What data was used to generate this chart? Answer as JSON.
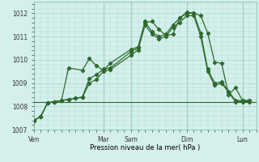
{
  "background_color": "#d5f0ec",
  "grid_color": "#b0d8d0",
  "line_color": "#2d6a2d",
  "xlabel": "Pression niveau de la mer( hPa )",
  "ylim": [
    1007,
    1012.5
  ],
  "yticks": [
    1007,
    1008,
    1009,
    1010,
    1011,
    1012
  ],
  "day_labels": [
    "Ven",
    "Mar",
    "Sam",
    "Dim",
    "Lun"
  ],
  "day_positions": [
    0,
    10,
    14,
    22,
    30
  ],
  "xmin": 0,
  "xmax": 32,
  "hline_y": 1008.2,
  "series1": {
    "x": [
      0,
      1,
      2,
      3,
      4,
      5,
      7,
      8,
      9,
      10,
      11,
      14,
      15,
      16,
      17,
      18,
      19,
      20,
      21,
      22,
      23,
      24,
      25,
      26,
      27,
      28,
      29,
      30,
      31
    ],
    "y": [
      1007.4,
      1007.55,
      1008.15,
      1008.2,
      1008.25,
      1009.65,
      1009.55,
      1010.05,
      1009.75,
      1009.55,
      1009.85,
      1010.45,
      1010.55,
      1011.6,
      1011.65,
      1011.3,
      1011.05,
      1011.1,
      1011.8,
      1012.05,
      1012.0,
      1011.9,
      1011.15,
      1009.9,
      1009.85,
      1008.5,
      1008.8,
      1008.25,
      1008.25
    ]
  },
  "series2": {
    "x": [
      0,
      1,
      2,
      3,
      4,
      5,
      6,
      7,
      8,
      9,
      10,
      11,
      14,
      15,
      16,
      17,
      18,
      19,
      20,
      21,
      22,
      23,
      24,
      25,
      26,
      27,
      28,
      29,
      30,
      31
    ],
    "y": [
      1007.4,
      1007.55,
      1008.15,
      1008.2,
      1008.25,
      1008.3,
      1008.35,
      1008.4,
      1009.2,
      1009.35,
      1009.6,
      1009.65,
      1010.35,
      1010.5,
      1011.65,
      1011.2,
      1011.0,
      1011.1,
      1011.5,
      1011.8,
      1012.0,
      1012.0,
      1011.15,
      1009.6,
      1009.0,
      1009.05,
      1008.65,
      1008.25,
      1008.25,
      1008.25
    ]
  },
  "series3": {
    "x": [
      0,
      1,
      2,
      3,
      4,
      5,
      6,
      7,
      8,
      9,
      10,
      11,
      14,
      15,
      16,
      17,
      18,
      19,
      20,
      21,
      22,
      23,
      24,
      25,
      26,
      27,
      28,
      29,
      30,
      31
    ],
    "y": [
      1007.4,
      1007.55,
      1008.15,
      1008.2,
      1008.25,
      1008.3,
      1008.35,
      1008.38,
      1009.0,
      1009.15,
      1009.5,
      1009.58,
      1010.2,
      1010.42,
      1011.5,
      1011.1,
      1010.9,
      1011.0,
      1011.4,
      1011.6,
      1011.9,
      1011.9,
      1011.0,
      1009.5,
      1008.9,
      1009.0,
      1008.6,
      1008.2,
      1008.2,
      1008.2
    ]
  }
}
